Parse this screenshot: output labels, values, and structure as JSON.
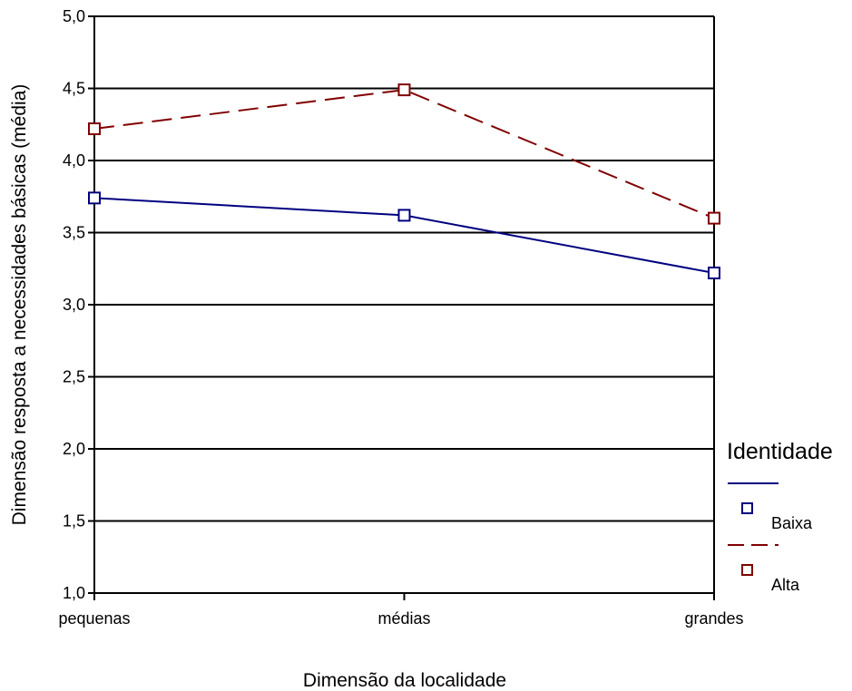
{
  "chart_data": {
    "type": "line",
    "xlabel": "Dimensão da localidade",
    "ylabel": "Dimensão resposta a necessidades básicas (média)",
    "categories": [
      "pequenas",
      "médias",
      "grandes"
    ],
    "ylim": [
      1.0,
      5.0
    ],
    "yticks": [
      "1,0",
      "1,5",
      "2,0",
      "2,5",
      "3,0",
      "3,5",
      "4,0",
      "4,5",
      "5,0"
    ],
    "ytick_values": [
      1.0,
      1.5,
      2.0,
      2.5,
      3.0,
      3.5,
      4.0,
      4.5,
      5.0
    ],
    "grid": true,
    "legend_placement": "right",
    "legend_title": "Identidade",
    "series": [
      {
        "name": "Baixa",
        "values": [
          3.74,
          3.62,
          3.22
        ],
        "color": "#000080",
        "dashed": false
      },
      {
        "name": "Alta",
        "values": [
          4.22,
          4.49,
          3.6
        ],
        "color": "#800000",
        "dashed": true
      }
    ]
  }
}
